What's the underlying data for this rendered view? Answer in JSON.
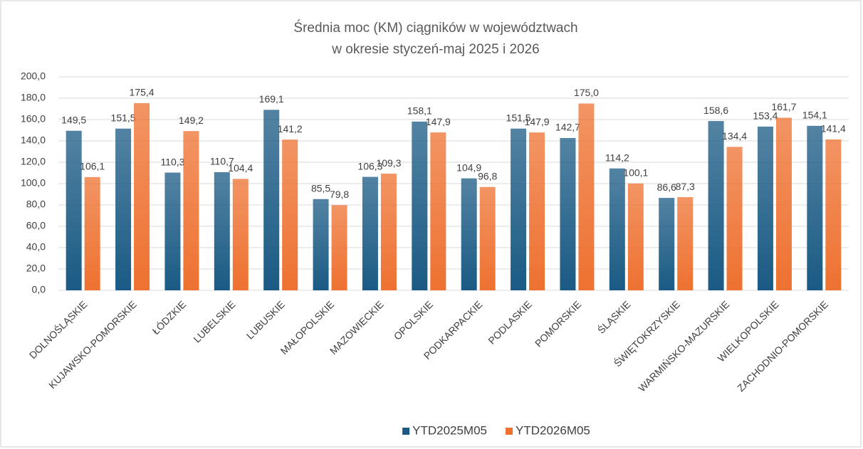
{
  "chart_data": {
    "type": "bar",
    "title": [
      "Średnia moc (KM) ciągników w województwach",
      "w okresie styczeń-maj 2025 i 2026"
    ],
    "categories": [
      "DOLNOŚLĄSKIE",
      "KUJAWSKO-POMORSKIE",
      "ŁÓDZKIE",
      "LUBELSKIE",
      "LUBUSKIE",
      "MAŁOPOLSKIE",
      "MAZOWIECKIE",
      "OPOLSKIE",
      "PODKARPACKIE",
      "PODLASKIE",
      "POMORSKIE",
      "ŚLĄSKIE",
      "ŚWIĘTOKRZYSKIE",
      "WARMIŃSKO-MAZURSKIE",
      "WIELKOPOLSKIE",
      "ZACHODNIO-POMORSKIE"
    ],
    "series": [
      {
        "name": "YTD2025M05",
        "color": "#1a5a84",
        "values": [
          149.5,
          151.5,
          110.3,
          110.7,
          169.1,
          85.5,
          106.3,
          158.1,
          104.9,
          151.5,
          142.7,
          114.2,
          86.6,
          158.6,
          153.4,
          154.1
        ],
        "value_labels": [
          "149,5",
          "151,5",
          "110,3",
          "110,7",
          "169,1",
          "85,5",
          "106,3",
          "158,1",
          "104,9",
          "151,5",
          "142,7",
          "114,2",
          "86,6",
          "158,6",
          "153,4",
          "154,1"
        ]
      },
      {
        "name": "YTD2026M05",
        "color": "#ee7130",
        "values": [
          106.1,
          175.4,
          149.2,
          104.4,
          141.2,
          79.8,
          109.3,
          147.9,
          96.8,
          147.9,
          175.0,
          100.1,
          87.3,
          134.4,
          161.7,
          141.4
        ],
        "value_labels": [
          "106,1",
          "175,4",
          "149,2",
          "104,4",
          "141,2",
          "79,8",
          "109,3",
          "147,9",
          "96,8",
          "147,9",
          "175,0",
          "100,1",
          "87,3",
          "134,4",
          "161,7",
          "141,4"
        ]
      }
    ],
    "ylim": [
      0,
      200
    ],
    "yticks": [
      {
        "value": 0,
        "label": "0,0"
      },
      {
        "value": 20,
        "label": "20,0"
      },
      {
        "value": 40,
        "label": "40,0"
      },
      {
        "value": 60,
        "label": "60,0"
      },
      {
        "value": 80,
        "label": "80,0"
      },
      {
        "value": 100,
        "label": "100,0"
      },
      {
        "value": 120,
        "label": "120,0"
      },
      {
        "value": 140,
        "label": "140,0"
      },
      {
        "value": 160,
        "label": "160,0"
      },
      {
        "value": 180,
        "label": "180,0"
      },
      {
        "value": 200,
        "label": "200,0"
      }
    ],
    "grid": true,
    "legend": "bottom"
  }
}
